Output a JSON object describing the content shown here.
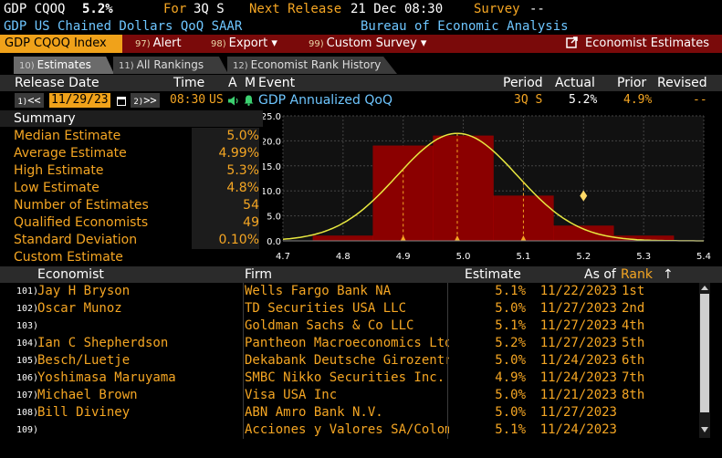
{
  "header": {
    "ticker": "GDP CQOQ",
    "ticker_value": "5.2%",
    "for_label": "For",
    "period": "3Q S",
    "next_release_label": "Next Release",
    "next_release": "21 Dec 08:30",
    "survey_label": "Survey",
    "survey_value": "--",
    "description": "GDP US Chained Dollars QoQ SAAR",
    "source": "Bureau of Economic Analysis"
  },
  "menu": {
    "index_label": "GDP CQOQ Index",
    "alert_num": "97)",
    "alert_label": "Alert",
    "export_num": "98)",
    "export_label": "Export ▾",
    "custom_num": "99)",
    "custom_label": "Custom Survey ▾",
    "economist_label": "Economist Estimates"
  },
  "tabs": [
    {
      "num": "10)",
      "label": "Estimates"
    },
    {
      "num": "11)",
      "label": "All Rankings"
    },
    {
      "num": "12)",
      "label": "Economist Rank History"
    }
  ],
  "release_table": {
    "headers": {
      "release_date": "Release Date",
      "time": "Time",
      "a": "A",
      "m": "M",
      "event": "Event",
      "period": "Period",
      "actual": "Actual",
      "prior": "Prior",
      "revised": "Revised"
    },
    "row": {
      "prev_num": "1)",
      "prev_btn": "<<",
      "date": "11/29/23",
      "next_num": "2)",
      "next_btn": ">>",
      "time": "08:30",
      "country": "US",
      "event": "GDP Annualized QoQ",
      "period": "3Q S",
      "actual": "5.2%",
      "prior": "4.9%",
      "revised": "--"
    }
  },
  "summary": {
    "title": "Summary",
    "rows": [
      {
        "label": "Median Estimate",
        "value": "5.0%"
      },
      {
        "label": "Average Estimate",
        "value": "4.99%"
      },
      {
        "label": "High Estimate",
        "value": "5.3%"
      },
      {
        "label": "Low Estimate",
        "value": "4.8%"
      },
      {
        "label": "Number of Estimates",
        "value": "54"
      },
      {
        "label": "Qualified Economists",
        "value": "49"
      },
      {
        "label": "Standard Deviation",
        "value": "0.10%"
      },
      {
        "label": "Custom Estimate",
        "value": ""
      }
    ]
  },
  "chart_data": {
    "type": "bar",
    "x_ticks": [
      "4.7",
      "4.8",
      "4.9",
      "5.0",
      "5.1",
      "5.2",
      "5.3",
      "5.4"
    ],
    "y_ticks": [
      "0.0",
      "5.0",
      "10.0",
      "15.0",
      "20.0",
      "25.0"
    ],
    "xlim": [
      4.7,
      5.4
    ],
    "ylim": [
      0,
      25
    ],
    "bins": [
      {
        "x0": 4.75,
        "x1": 4.85,
        "value": 1
      },
      {
        "x0": 4.85,
        "x1": 4.95,
        "value": 19
      },
      {
        "x0": 4.95,
        "x1": 5.05,
        "value": 21
      },
      {
        "x0": 5.05,
        "x1": 5.15,
        "value": 9
      },
      {
        "x0": 5.15,
        "x1": 5.25,
        "value": 3
      },
      {
        "x0": 5.25,
        "x1": 5.35,
        "value": 1
      }
    ],
    "normal_curve": {
      "mean": 4.99,
      "sd": 0.1,
      "peak": 21.5
    },
    "markers": [
      {
        "x": 4.9,
        "type": "low"
      },
      {
        "x": 4.99,
        "type": "mean"
      },
      {
        "x": 5.1,
        "type": "high"
      }
    ],
    "actual_marker": {
      "x": 5.2,
      "y": 9
    },
    "grid": true,
    "colors": {
      "bar": "#8b0000",
      "curve": "#e8e840",
      "marker": "#f5a623",
      "actual": "#ffd966"
    }
  },
  "economists": {
    "headers": {
      "economist": "Economist",
      "firm": "Firm",
      "estimate": "Estimate",
      "as_of": "As of",
      "rank": "Rank",
      "sort": "↑"
    },
    "rows": [
      {
        "idx": "101)",
        "name": "Jay H Bryson",
        "firm": "Wells Fargo Bank NA",
        "estimate": "5.1%",
        "as_of": "11/22/2023",
        "rank": "1st"
      },
      {
        "idx": "102)",
        "name": "Oscar Munoz",
        "firm": "TD Securities USA LLC",
        "estimate": "5.0%",
        "as_of": "11/27/2023",
        "rank": "2nd"
      },
      {
        "idx": "103)",
        "name": "",
        "firm": "Goldman Sachs & Co LLC",
        "estimate": "5.1%",
        "as_of": "11/27/2023",
        "rank": "4th"
      },
      {
        "idx": "104)",
        "name": "Ian C Shepherdson",
        "firm": "Pantheon Macroeconomics Ltd",
        "estimate": "5.2%",
        "as_of": "11/27/2023",
        "rank": "5th"
      },
      {
        "idx": "105)",
        "name": "Besch/Luetje",
        "firm": "Dekabank Deutsche Girozentra…",
        "estimate": "5.0%",
        "as_of": "11/24/2023",
        "rank": "6th"
      },
      {
        "idx": "106)",
        "name": "Yoshimasa Maruyama",
        "firm": "SMBC Nikko Securities Inc.",
        "estimate": "4.9%",
        "as_of": "11/24/2023",
        "rank": "7th"
      },
      {
        "idx": "107)",
        "name": "Michael Brown",
        "firm": "Visa USA Inc",
        "estimate": "5.0%",
        "as_of": "11/21/2023",
        "rank": "8th"
      },
      {
        "idx": "108)",
        "name": "Bill Diviney",
        "firm": "ABN Amro Bank N.V.",
        "estimate": "5.0%",
        "as_of": "11/27/2023",
        "rank": ""
      },
      {
        "idx": "109)",
        "name": "",
        "firm": "Acciones y Valores SA/Colomb…",
        "estimate": "5.1%",
        "as_of": "11/24/2023",
        "rank": ""
      }
    ]
  }
}
